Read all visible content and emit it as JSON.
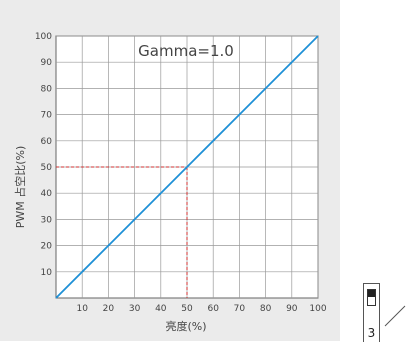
{
  "chart_data": {
    "type": "line",
    "title": "Gamma=1.0",
    "xlabel": "亮度(%)",
    "ylabel": "PWM 占空比(%)",
    "xlim": [
      0,
      100
    ],
    "ylim": [
      0,
      100
    ],
    "x_ticks": [
      "10",
      "20",
      "30",
      "40",
      "50",
      "60",
      "70",
      "80",
      "90",
      "100"
    ],
    "y_ticks": [
      "10",
      "20",
      "30",
      "40",
      "50",
      "60",
      "70",
      "80",
      "90",
      "100"
    ],
    "grid": true,
    "series": [
      {
        "x": [
          0,
          100
        ],
        "y": [
          0,
          100
        ],
        "color": "#1e90d6"
      }
    ],
    "annotations": [
      {
        "type": "dashed-crosshair",
        "x": 50,
        "y": 50,
        "color": "#d03030"
      }
    ]
  },
  "overlay": {
    "box_number": "3"
  }
}
